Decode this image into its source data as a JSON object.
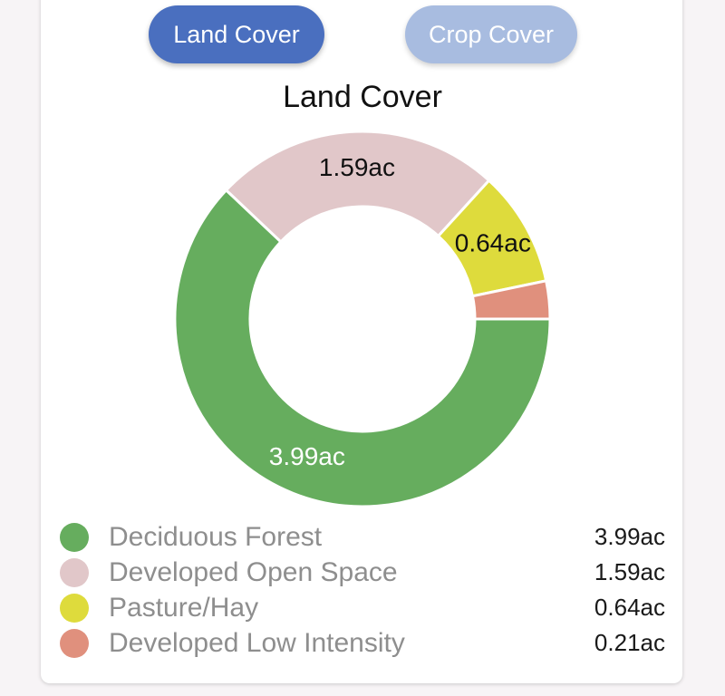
{
  "tabs": [
    {
      "label": "Land Cover",
      "active": true
    },
    {
      "label": "Crop Cover",
      "active": false
    }
  ],
  "chart_data": {
    "type": "pie",
    "title": "Land Cover",
    "categories": [
      "Deciduous Forest",
      "Developed Open Space",
      "Pasture/Hay",
      "Developed Low Intensity"
    ],
    "values": [
      3.99,
      1.59,
      0.64,
      0.21
    ],
    "unit": "ac",
    "labels": [
      "3.99ac",
      "1.59ac",
      "0.64ac",
      "0.21ac"
    ],
    "slice_labels": [
      "3.99ac",
      "1.59ac",
      "0.64ac",
      ""
    ],
    "colors": [
      "#66ad5e",
      "#e1c7c9",
      "#dedb3c",
      "#e0907d"
    ],
    "legend_position": "bottom"
  }
}
